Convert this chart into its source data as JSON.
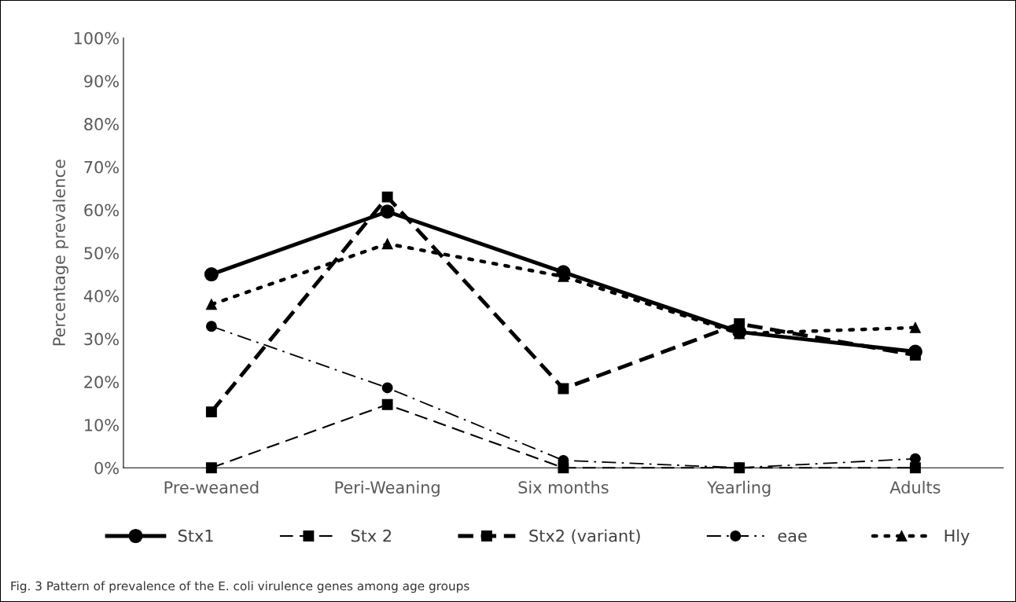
{
  "chart_data": {
    "type": "line",
    "ylabel": "Percentage prevalence",
    "categories": [
      "Pre-weaned",
      "Peri-Weaning",
      "Six months",
      "Yearling",
      "Adults"
    ],
    "ylim": [
      0,
      100
    ],
    "yticks": [
      {
        "value": 0,
        "label": "0%"
      },
      {
        "value": 10,
        "label": "10%"
      },
      {
        "value": 20,
        "label": "20%"
      },
      {
        "value": 30,
        "label": "30%"
      },
      {
        "value": 40,
        "label": "40%"
      },
      {
        "value": 50,
        "label": "50%"
      },
      {
        "value": 60,
        "label": "60%"
      },
      {
        "value": 70,
        "label": "70%"
      },
      {
        "value": 80,
        "label": "80%"
      },
      {
        "value": 90,
        "label": "90%"
      },
      {
        "value": 100,
        "label": "100%"
      }
    ],
    "series": [
      {
        "name": "Stx1",
        "color": "#000000",
        "marker": "circle",
        "line_style": "solid",
        "values": [
          45,
          59.6,
          45.5,
          31.6,
          27
        ]
      },
      {
        "name": "Stx 2",
        "color": "#000000",
        "marker": "square",
        "line_style": "dashed",
        "values": [
          0,
          14.7,
          0,
          0,
          0
        ]
      },
      {
        "name": "Stx2 (variant)",
        "color": "#000000",
        "marker": "square",
        "line_style": "dashed",
        "values": [
          13,
          63,
          18.4,
          33.5,
          26.2
        ]
      },
      {
        "name": "eae",
        "color": "#000000",
        "marker": "circle",
        "line_style": "dashdot",
        "values": [
          32.9,
          18.6,
          1.7,
          0,
          2.1
        ]
      },
      {
        "name": "Hly",
        "color": "#000000",
        "marker": "triangle",
        "line_style": "dotted",
        "values": [
          38,
          52.1,
          44.5,
          31.2,
          32.6
        ]
      }
    ],
    "grid": false,
    "legend": "bottom",
    "annotations": [
      "Fig. 3 Pattern of prevalence of the E. coli virulence genes among age groups"
    ]
  }
}
